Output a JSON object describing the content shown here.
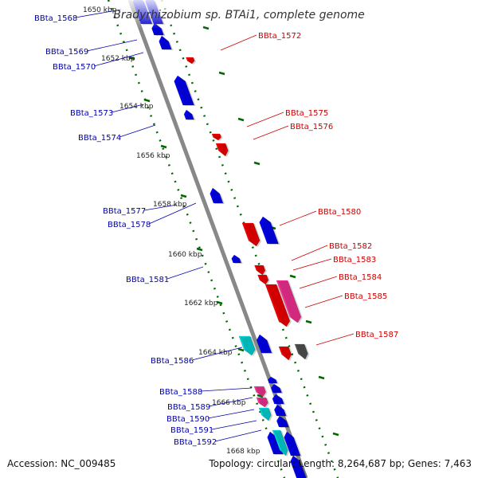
{
  "title": "Bradyrhizobium sp. BTAi1, complete genome",
  "accession_text": "Accession: NC_009485",
  "topology_text": "Topology: circular; Length: 8,264,687 bp; Genes: 7,463",
  "colors": {
    "reverse_label": "#0000aa",
    "forward_label": "#cc0000",
    "blue_gene": "#0000ff",
    "red_gene": "#ff0000",
    "magenta_gene": "#ff3399",
    "cyan_gene": "#00dddd",
    "gray_gene": "#555555",
    "backbone": "#888888",
    "tick": "#006600"
  },
  "kbp_ticks": [
    "1650 kbp",
    "1652 kbp",
    "1654 kbp",
    "1656 kbp",
    "1658 kbp",
    "1660 kbp",
    "1662 kbp",
    "1664 kbp",
    "1666 kbp",
    "1668 kbp"
  ],
  "reverse_labels": [
    "BBta_1568",
    "BBta_1569",
    "BBta_1570",
    "BBta_1573",
    "BBta_1574",
    "BBta_1577",
    "BBta_1578",
    "BBta_1581",
    "BBta_1586",
    "BBta_1588",
    "BBta_1589",
    "BBta_1590",
    "BBta_1591",
    "BBta_1592"
  ],
  "forward_labels": [
    "BBta_1572",
    "BBta_1575",
    "BBta_1576",
    "BBta_1580",
    "BBta_1582",
    "BBta_1583",
    "BBta_1584",
    "BBta_1585",
    "BBta_1587"
  ]
}
